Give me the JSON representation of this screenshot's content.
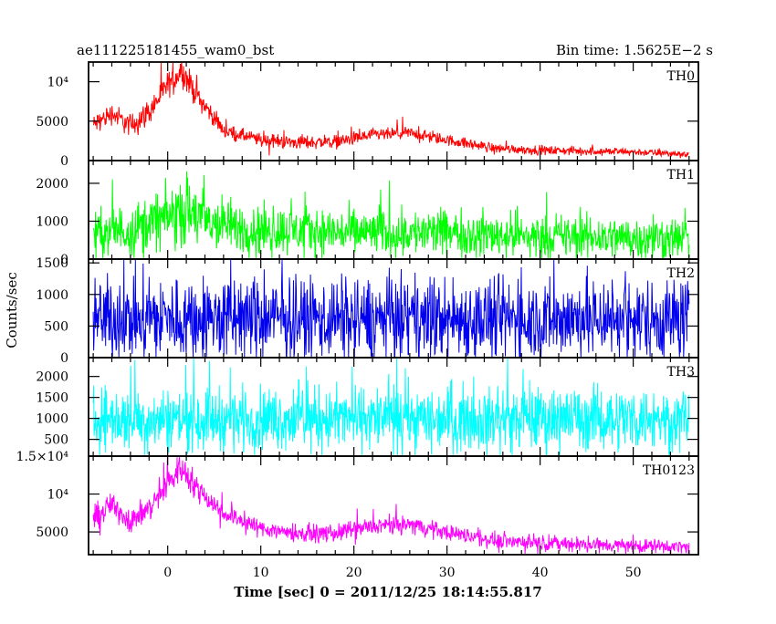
{
  "header": {
    "title": "ae111225181455_wam0_bst",
    "bin_time": "Bin time: 1.5625E−2 s"
  },
  "chart_data": {
    "type": "line",
    "title": "ae111225181455_wam0_bst",
    "xlabel": "Time [sec] 0 = 2011/12/25 18:14:55.817",
    "ylabel": "Counts/sec",
    "xlim": [
      -8.5,
      57
    ],
    "x_ticks": [
      0,
      10,
      20,
      30,
      40,
      50
    ],
    "x_tick_labels": [
      "0",
      "10",
      "20",
      "30",
      "40",
      "50"
    ],
    "x_range_data": [
      -8,
      56
    ],
    "panels": [
      {
        "name": "TH0",
        "color": "#ff0000",
        "ylim": [
          0,
          12500
        ],
        "y_ticks": [
          0,
          5000,
          10000
        ],
        "y_tick_labels": [
          "0",
          "5000",
          "10⁴"
        ],
        "profile": [
          [
            -8,
            4500
          ],
          [
            -6,
            6000
          ],
          [
            -4,
            4400
          ],
          [
            -2,
            6200
          ],
          [
            0,
            9500
          ],
          [
            1.5,
            11500
          ],
          [
            3,
            8500
          ],
          [
            6,
            3800
          ],
          [
            10,
            2600
          ],
          [
            14,
            2300
          ],
          [
            18,
            2400
          ],
          [
            22,
            3200
          ],
          [
            26,
            3500
          ],
          [
            30,
            2600
          ],
          [
            35,
            1600
          ],
          [
            40,
            1300
          ],
          [
            45,
            1200
          ],
          [
            50,
            1100
          ],
          [
            56,
            800
          ]
        ],
        "noise": [
          [
            -8,
            900
          ],
          [
            0,
            1200
          ],
          [
            2,
            1200
          ],
          [
            6,
            600
          ],
          [
            20,
            600
          ],
          [
            40,
            400
          ],
          [
            56,
            300
          ]
        ]
      },
      {
        "name": "TH1",
        "color": "#00ff00",
        "ylim": [
          0,
          2600
        ],
        "y_ticks": [
          0,
          1000,
          2000
        ],
        "y_tick_labels": [
          "0",
          "1000",
          "2000"
        ],
        "profile": [
          [
            -8,
            650
          ],
          [
            -4,
            800
          ],
          [
            0,
            1100
          ],
          [
            2,
            1300
          ],
          [
            4,
            1000
          ],
          [
            8,
            800
          ],
          [
            20,
            700
          ],
          [
            30,
            700
          ],
          [
            40,
            600
          ],
          [
            56,
            550
          ]
        ],
        "noise": [
          [
            -8,
            420
          ],
          [
            0,
            550
          ],
          [
            2,
            650
          ],
          [
            8,
            450
          ],
          [
            56,
            380
          ]
        ]
      },
      {
        "name": "TH2",
        "color": "#0000ee",
        "ylim": [
          0,
          1560
        ],
        "y_ticks": [
          0,
          500,
          1000,
          1500
        ],
        "y_tick_labels": [
          "0",
          "500",
          "1000",
          "1500"
        ],
        "profile": [
          [
            -8,
            620
          ],
          [
            56,
            620
          ]
        ],
        "noise": [
          [
            -8,
            450
          ],
          [
            56,
            450
          ]
        ]
      },
      {
        "name": "TH3",
        "color": "#00ffff",
        "ylim": [
          100,
          2450
        ],
        "y_ticks": [
          500,
          1000,
          1500,
          2000
        ],
        "y_tick_labels": [
          "500",
          "1000",
          "1500",
          "2000"
        ],
        "profile": [
          [
            -8,
            1000
          ],
          [
            56,
            1000
          ]
        ],
        "noise": [
          [
            -8,
            520
          ],
          [
            56,
            520
          ]
        ]
      },
      {
        "name": "TH0123",
        "color": "#ff00ff",
        "ylim": [
          2000,
          15000
        ],
        "y_ticks": [
          5000,
          10000,
          15000
        ],
        "y_tick_labels": [
          "5000",
          "10⁴",
          "1.5×10⁴"
        ],
        "profile": [
          [
            -8,
            6800
          ],
          [
            -6,
            8500
          ],
          [
            -4,
            6500
          ],
          [
            -2,
            8000
          ],
          [
            0,
            11500
          ],
          [
            1.5,
            13500
          ],
          [
            3,
            11000
          ],
          [
            6,
            7500
          ],
          [
            10,
            5500
          ],
          [
            14,
            4800
          ],
          [
            18,
            4800
          ],
          [
            22,
            5700
          ],
          [
            26,
            6000
          ],
          [
            30,
            5000
          ],
          [
            35,
            3900
          ],
          [
            40,
            3600
          ],
          [
            45,
            3300
          ],
          [
            50,
            3200
          ],
          [
            56,
            3000
          ]
        ],
        "noise": [
          [
            -8,
            1100
          ],
          [
            0,
            1300
          ],
          [
            2,
            1400
          ],
          [
            6,
            800
          ],
          [
            20,
            800
          ],
          [
            56,
            600
          ]
        ]
      }
    ]
  }
}
